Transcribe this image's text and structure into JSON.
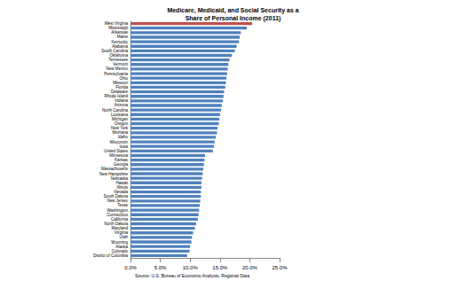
{
  "chart_data": {
    "type": "bar",
    "orientation": "horizontal",
    "title": "Medicare, Medicaid, and Social Security as a\nShare of Personal Income (2011)",
    "source": "Source: U.S. Bureau of Economic Analysis, Regional Data",
    "categories": [
      "West Virginia",
      "Mississippi",
      "Arkansas",
      "Maine",
      "Kentucky",
      "Alabama",
      "South Carolina",
      "Oklahoma",
      "Tennessee",
      "Vermont",
      "New Mexico",
      "Pennsylvania",
      "Ohio",
      "Missouri",
      "Florida",
      "Delaware",
      "Rhode Island",
      "Indiana",
      "Arizona",
      "North Carolina",
      "Louisiana",
      "Michigan",
      "Oregon",
      "New York",
      "Montana",
      "Idaho",
      "Wisconsin",
      "Iowa",
      "United States",
      "Minnesota",
      "Kansas",
      "Georgia",
      "Massachusetts",
      "New Hampshire",
      "Nebraska",
      "Hawaii",
      "Illinois",
      "Nevada",
      "South Dakota",
      "New Jersey",
      "Texas",
      "Washington",
      "Connecticut",
      "California",
      "North Dakota",
      "Maryland",
      "Virginia",
      "Utah",
      "Wyoming",
      "Alaska",
      "Colorado",
      "District of Columbia"
    ],
    "values": [
      20.4,
      19.5,
      18.5,
      18.3,
      18.2,
      17.8,
      17.5,
      17.0,
      16.6,
      16.4,
      16.3,
      16.2,
      16.1,
      16.0,
      15.9,
      15.7,
      15.6,
      15.5,
      15.3,
      15.2,
      15.0,
      14.9,
      14.8,
      14.6,
      14.5,
      14.3,
      14.1,
      14.0,
      13.8,
      12.5,
      12.4,
      12.3,
      12.2,
      12.1,
      12.0,
      11.9,
      11.9,
      11.8,
      11.8,
      11.7,
      11.6,
      11.5,
      11.4,
      11.3,
      11.0,
      10.8,
      10.5,
      10.3,
      10.2,
      10.0,
      9.9,
      9.5
    ],
    "colors": [
      "#c0504d",
      "#4f81bd",
      "#4f81bd",
      "#4f81bd",
      "#4f81bd",
      "#4f81bd",
      "#4f81bd",
      "#4f81bd",
      "#4f81bd",
      "#4f81bd",
      "#4f81bd",
      "#4f81bd",
      "#4f81bd",
      "#4f81bd",
      "#4f81bd",
      "#4f81bd",
      "#4f81bd",
      "#4f81bd",
      "#4f81bd",
      "#4f81bd",
      "#4f81bd",
      "#4f81bd",
      "#4f81bd",
      "#4f81bd",
      "#4f81bd",
      "#4f81bd",
      "#4f81bd",
      "#4f81bd",
      "#4f81bd",
      "#4f81bd",
      "#4f81bd",
      "#4f81bd",
      "#4f81bd",
      "#4f81bd",
      "#4f81bd",
      "#4f81bd",
      "#4f81bd",
      "#4f81bd",
      "#4f81bd",
      "#4f81bd",
      "#4f81bd",
      "#4f81bd",
      "#4f81bd",
      "#4f81bd",
      "#4f81bd",
      "#4f81bd",
      "#4f81bd",
      "#4f81bd",
      "#4f81bd",
      "#4f81bd",
      "#4f81bd",
      "#4f81bd"
    ],
    "xlim": [
      0,
      25
    ],
    "xticks": [
      {
        "value": 0,
        "label": "0.0%"
      },
      {
        "value": 5,
        "label": "5.0%"
      },
      {
        "value": 10,
        "label": "10.0%"
      },
      {
        "value": 15,
        "label": "15.0%"
      },
      {
        "value": 20,
        "label": "20.0%"
      },
      {
        "value": 25,
        "label": "25.0%"
      }
    ],
    "grid": false
  }
}
